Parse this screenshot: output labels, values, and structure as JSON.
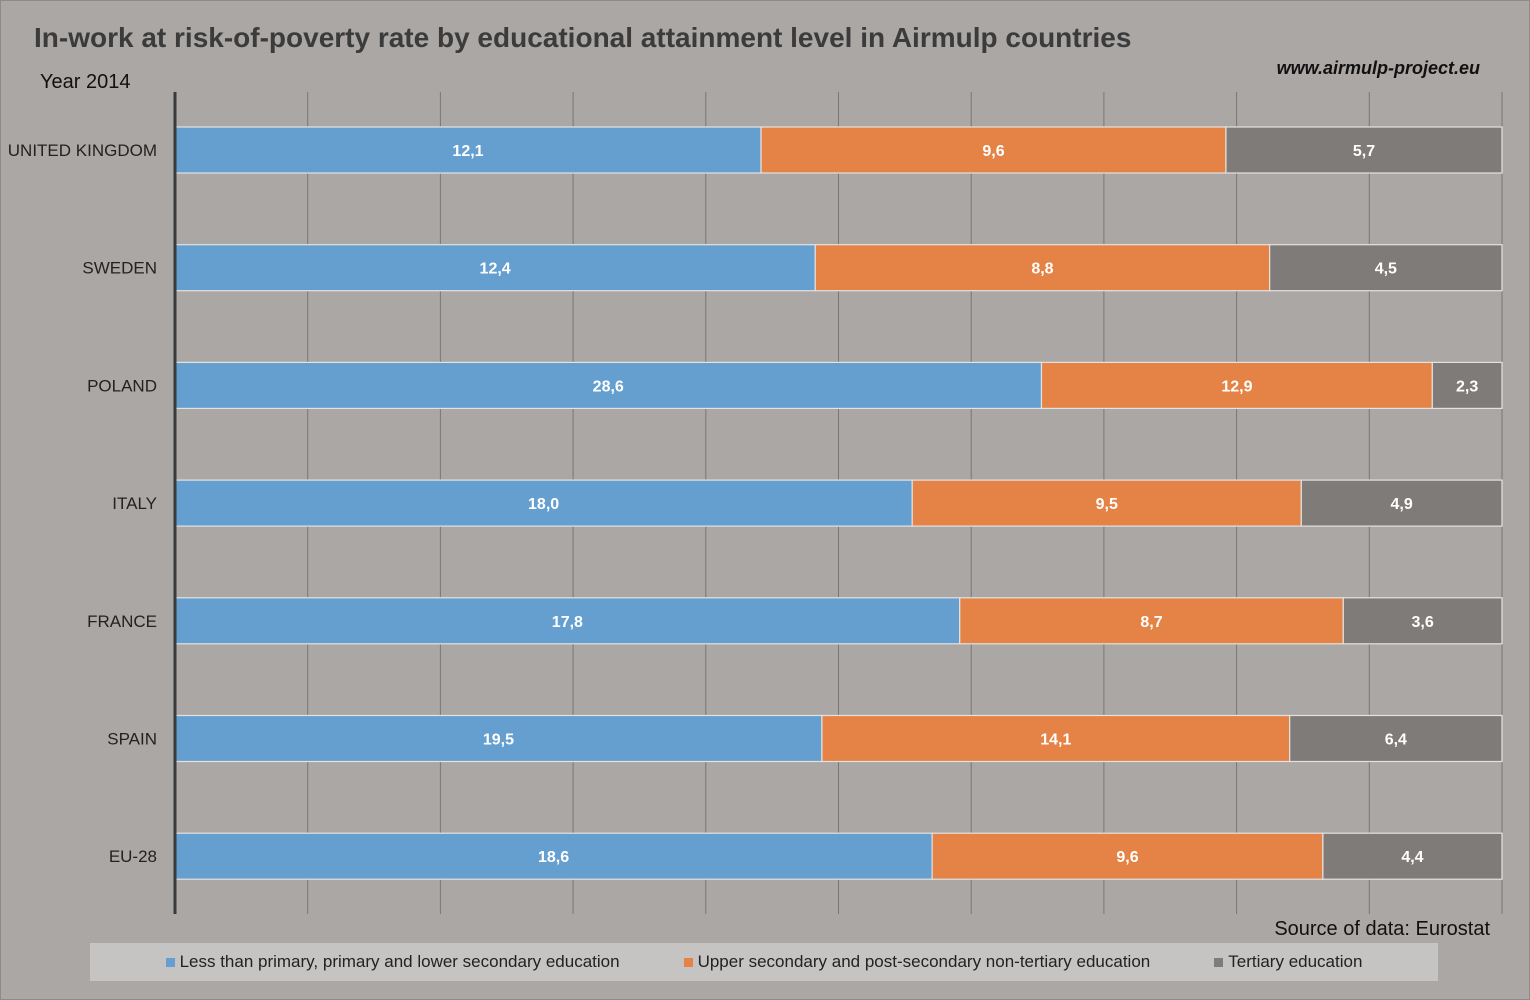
{
  "header": {
    "title": "In-work at risk-of-poverty rate by educational attainment level in Airmulp countries",
    "subtitle": "Year 2014",
    "website": "www.airmulp-project.eu"
  },
  "footer": {
    "source": "Source of data: Eurostat"
  },
  "colors": {
    "series_1": "#659fd0",
    "series_2": "#e58346",
    "series_3": "#7f7b79"
  },
  "chart_data": {
    "type": "bar",
    "orientation": "horizontal",
    "stacked": "percent",
    "title": "In-work at risk-of-poverty rate by educational attainment level in Airmulp countries",
    "categories": [
      "UNITED KINGDOM",
      "SWEDEN",
      "POLAND",
      "ITALY",
      "FRANCE",
      "SPAIN",
      "EU-28"
    ],
    "series": [
      {
        "name": "Less than primary, primary and lower secondary education",
        "color": "#659fd0",
        "values": [
          12.1,
          12.4,
          28.6,
          18.0,
          17.8,
          19.5,
          18.6
        ],
        "labels": [
          "12,1",
          "12,4",
          "28,6",
          "18,0",
          "17,8",
          "19,5",
          "18,6"
        ]
      },
      {
        "name": "Upper secondary and post-secondary non-tertiary education",
        "color": "#e58346",
        "values": [
          9.6,
          8.8,
          12.9,
          9.5,
          8.7,
          14.1,
          9.6
        ],
        "labels": [
          "9,6",
          "8,8",
          "12,9",
          "9,5",
          "8,7",
          "14,1",
          "9,6"
        ]
      },
      {
        "name": "Tertiary education",
        "color": "#7f7b79",
        "values": [
          5.7,
          4.5,
          2.3,
          4.9,
          3.6,
          6.4,
          4.4
        ],
        "labels": [
          "5,7",
          "4,5",
          "2,3",
          "4,9",
          "3,6",
          "6,4",
          "4,4"
        ]
      }
    ],
    "grid": true,
    "legend_position": "bottom"
  }
}
